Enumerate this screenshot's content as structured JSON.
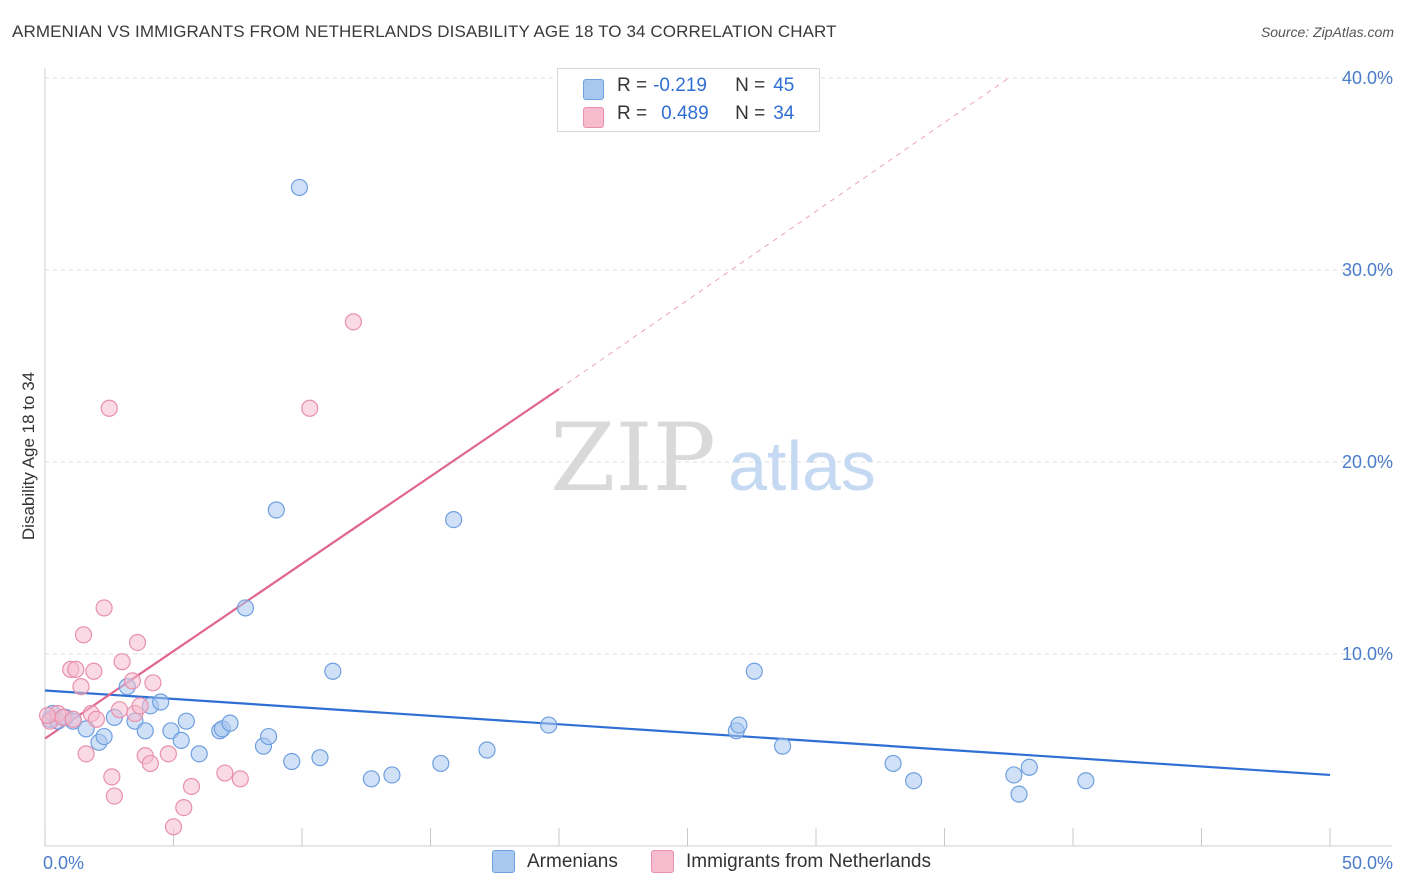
{
  "title": "ARMENIAN VS IMMIGRANTS FROM NETHERLANDS DISABILITY AGE 18 TO 34 CORRELATION CHART",
  "source": "Source: ZipAtlas.com",
  "watermark": {
    "zip": "ZIP",
    "atlas": "atlas"
  },
  "legend": {
    "rows": [
      {
        "r_label": "R =",
        "r_value": "-0.219",
        "n_label": "N =",
        "n_value": "45"
      },
      {
        "r_label": "R =",
        "r_value": "0.489",
        "n_label": "N =",
        "n_value": "34"
      }
    ]
  },
  "bottom_legend": {
    "series1": "Armenians",
    "series2": "Immigrants from Netherlands"
  },
  "colors": {
    "blue_fill": "#a9c8f0",
    "blue_stroke": "#6f9fe0",
    "blue_line": "#2f6ed3",
    "pink_fill": "#f6bccd",
    "pink_stroke": "#e890ab",
    "pink_line": "#e0668f",
    "tick_text": "#4a7cc9",
    "grid": "#dddddd"
  },
  "chart_data": {
    "type": "scatter",
    "title": "ARMENIAN VS IMMIGRANTS FROM NETHERLANDS DISABILITY AGE 18 TO 34 CORRELATION CHART",
    "xlabel": "",
    "ylabel": "Disability Age 18 to 34",
    "xlim": [
      0,
      50
    ],
    "ylim": [
      0,
      40
    ],
    "x_tick_labels": [
      "0.0%",
      "50.0%"
    ],
    "y_ticks": [
      10,
      20,
      30,
      40
    ],
    "y_tick_labels": [
      "10.0%",
      "20.0%",
      "30.0%",
      "40.0%"
    ],
    "grid": true,
    "series": [
      {
        "name": "Armenians",
        "points": [
          [
            0.2,
            6.6
          ],
          [
            0.3,
            6.9
          ],
          [
            0.5,
            6.5
          ],
          [
            0.8,
            6.7
          ],
          [
            1.1,
            6.5
          ],
          [
            1.6,
            6.1
          ],
          [
            2.1,
            5.4
          ],
          [
            2.3,
            5.7
          ],
          [
            2.7,
            6.7
          ],
          [
            3.2,
            8.3
          ],
          [
            3.5,
            6.5
          ],
          [
            3.9,
            6.0
          ],
          [
            4.1,
            7.3
          ],
          [
            4.5,
            7.5
          ],
          [
            4.9,
            6.0
          ],
          [
            5.3,
            5.5
          ],
          [
            5.5,
            6.5
          ],
          [
            6.0,
            4.8
          ],
          [
            6.8,
            6.0
          ],
          [
            6.9,
            6.1
          ],
          [
            7.2,
            6.4
          ],
          [
            7.8,
            12.4
          ],
          [
            8.5,
            5.2
          ],
          [
            8.7,
            5.7
          ],
          [
            9.6,
            4.4
          ],
          [
            9.0,
            17.5
          ],
          [
            9.9,
            34.3
          ],
          [
            10.7,
            4.6
          ],
          [
            11.2,
            9.1
          ],
          [
            12.7,
            3.5
          ],
          [
            13.5,
            3.7
          ],
          [
            15.4,
            4.3
          ],
          [
            15.9,
            17.0
          ],
          [
            17.2,
            5.0
          ],
          [
            19.6,
            6.3
          ],
          [
            26.9,
            6.0
          ],
          [
            27.0,
            6.3
          ],
          [
            27.6,
            9.1
          ],
          [
            28.7,
            5.2
          ],
          [
            33.0,
            4.3
          ],
          [
            33.8,
            3.4
          ],
          [
            37.7,
            3.7
          ],
          [
            37.9,
            2.7
          ],
          [
            38.3,
            4.1
          ],
          [
            40.5,
            3.4
          ]
        ],
        "trend": {
          "x": [
            0,
            50
          ],
          "y": [
            8.1,
            3.7
          ]
        }
      },
      {
        "name": "Immigrants from Netherlands",
        "points": [
          [
            0.2,
            6.5
          ],
          [
            0.5,
            6.9
          ],
          [
            0.7,
            6.7
          ],
          [
            1.0,
            9.2
          ],
          [
            1.1,
            6.6
          ],
          [
            1.2,
            9.2
          ],
          [
            1.4,
            8.3
          ],
          [
            1.5,
            11.0
          ],
          [
            1.6,
            4.8
          ],
          [
            1.8,
            6.9
          ],
          [
            1.9,
            9.1
          ],
          [
            2.0,
            6.6
          ],
          [
            2.3,
            12.4
          ],
          [
            2.5,
            22.8
          ],
          [
            2.6,
            3.6
          ],
          [
            2.7,
            2.6
          ],
          [
            2.9,
            7.1
          ],
          [
            3.0,
            9.6
          ],
          [
            3.4,
            8.6
          ],
          [
            3.5,
            6.9
          ],
          [
            3.6,
            10.6
          ],
          [
            3.7,
            7.3
          ],
          [
            3.9,
            4.7
          ],
          [
            4.1,
            4.3
          ],
          [
            4.2,
            8.5
          ],
          [
            4.8,
            4.8
          ],
          [
            5.0,
            1.0
          ],
          [
            5.4,
            2.0
          ],
          [
            5.7,
            3.1
          ],
          [
            7.0,
            3.8
          ],
          [
            7.6,
            3.5
          ],
          [
            10.3,
            22.8
          ],
          [
            12.0,
            27.3
          ],
          [
            0.1,
            6.8
          ]
        ],
        "trend": {
          "x": [
            0,
            20
          ],
          "y": [
            5.6,
            23.8
          ]
        },
        "trend_dashed": {
          "x": [
            20,
            37.5
          ],
          "y": [
            23.8,
            40.0
          ]
        }
      }
    ]
  }
}
